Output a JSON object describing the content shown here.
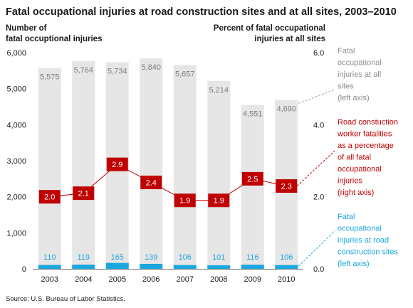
{
  "chart_data": {
    "type": "bar",
    "title": "Fatal occupational injuries at road construction sites and at all sites, 2003–2010",
    "ylabel_left": [
      "Number of",
      "fatal occuptional injuries"
    ],
    "ylabel_right": [
      "Percent of fatal occupational",
      "injuries at all sites"
    ],
    "categories": [
      "2003",
      "2004",
      "2005",
      "2006",
      "2007",
      "2008",
      "2009",
      "2010"
    ],
    "ylim_left": [
      0,
      6000
    ],
    "yticks_left": [
      "0",
      "1,000",
      "2,000",
      "3,000",
      "4,000",
      "5,000",
      "6,000"
    ],
    "ylim_right": [
      0,
      6
    ],
    "yticks_right": [
      "0.0",
      "2.0",
      "4.0",
      "6.0"
    ],
    "series": [
      {
        "name": "Fatal occupational injuries at all sites (left axis)",
        "kind": "bar",
        "axis": "left",
        "values": [
          5575,
          5764,
          5734,
          5840,
          5657,
          5214,
          4551,
          4690
        ],
        "labels": [
          "5,575",
          "5,764",
          "5,734",
          "5,840",
          "5,657",
          "5,214",
          "4,551",
          "4,690"
        ],
        "color": "#e6e6e6"
      },
      {
        "name": "Fatal occupational injuries at road construction sites (left axis)",
        "kind": "bar",
        "axis": "left",
        "values": [
          110,
          119,
          165,
          139,
          106,
          101,
          116,
          106
        ],
        "labels": [
          "110",
          "119",
          "165",
          "139",
          "106",
          "101",
          "116",
          "106"
        ],
        "color": "#1aa7e0"
      },
      {
        "name": "Road constuction worker fatalities as a percentage of all fatal occupational injuries (right axis)",
        "kind": "line",
        "axis": "right",
        "values": [
          2.0,
          2.1,
          2.9,
          2.4,
          1.9,
          1.9,
          2.5,
          2.3
        ],
        "labels": [
          "2.0",
          "2.1",
          "2.9",
          "2.4",
          "1.9",
          "1.9",
          "2.5",
          "2.3"
        ],
        "color": "#c00000"
      }
    ],
    "annotations": {
      "total": [
        "Fatal",
        "occupational",
        "injuries at all",
        "sites",
        "(left axis)"
      ],
      "pct": [
        "Road constuction",
        "worker fatalities",
        "as a percentage",
        "of all fatal",
        "occupational",
        "injuries",
        "(right axis)"
      ],
      "road": [
        "Fatal",
        "occupational",
        "injuries at road",
        "construction sites",
        "(left axis)"
      ]
    },
    "source": "Source: U.S. Bureau of Labor Statistics.",
    "grid": false,
    "legend": "annotations-right"
  }
}
